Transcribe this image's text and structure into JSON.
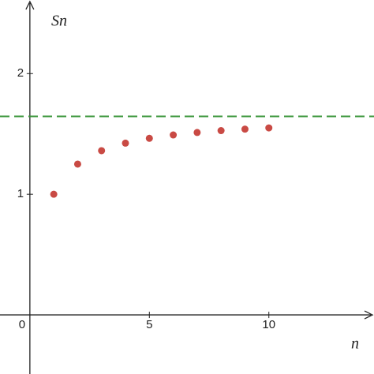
{
  "chart_data": {
    "type": "scatter",
    "x_label": "n",
    "y_label": "Sn",
    "x": [
      1,
      2,
      3,
      4,
      5,
      6,
      7,
      8,
      9,
      10
    ],
    "values": [
      1,
      1.25,
      1.3611,
      1.4236,
      1.4636,
      1.4914,
      1.5118,
      1.5274,
      1.5398,
      1.5498
    ],
    "color": "#c94a44",
    "reference_line": {
      "value": 1.645,
      "color": "#3a963a"
    },
    "xlim": [
      -1.25,
      14.4
    ],
    "ylim": [
      -0.49,
      2.61
    ],
    "xticks": [
      0,
      5,
      10
    ],
    "yticks": [
      1,
      2
    ]
  }
}
